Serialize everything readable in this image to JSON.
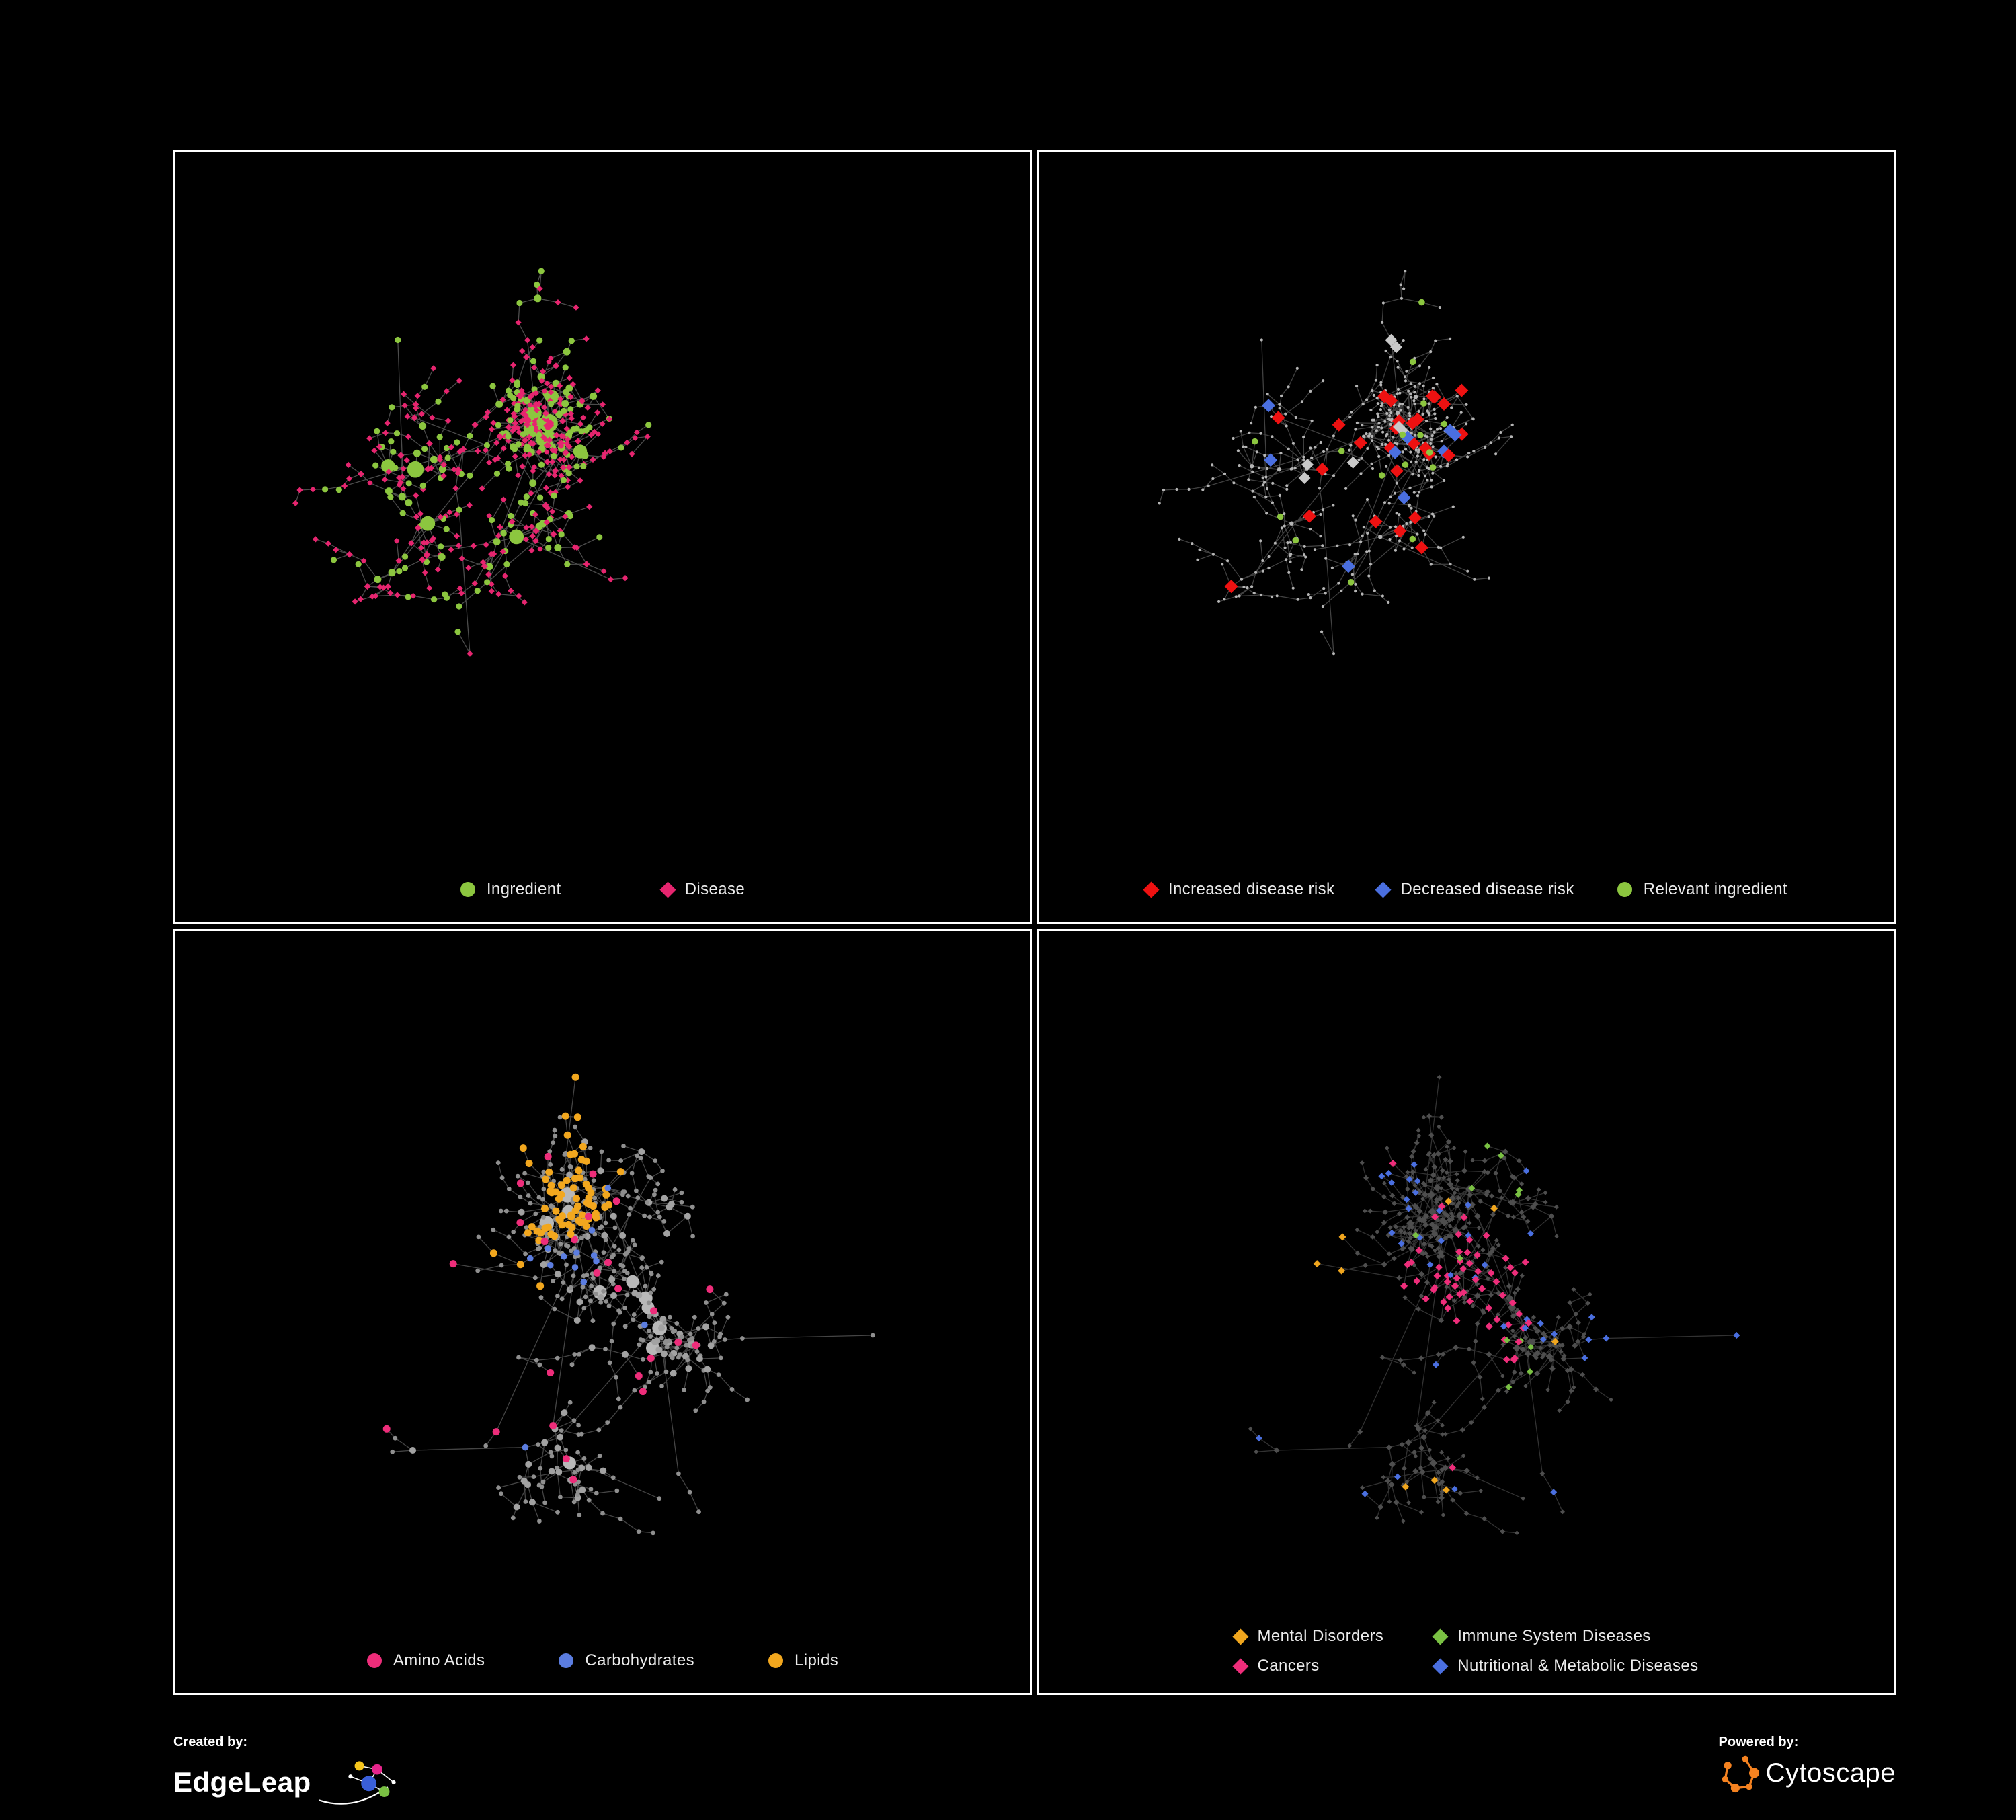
{
  "page": {
    "background": "#000000",
    "panel_border": "#ffffff",
    "text_color": "#e9e9e9"
  },
  "panels": [
    {
      "id": "ingredient-disease",
      "legend": [
        {
          "label": "Ingredient",
          "shape": "circle",
          "color": "#8cc63f"
        },
        {
          "label": "Disease",
          "shape": "diamond",
          "color": "#e6256f"
        }
      ],
      "network": {
        "seed": 11,
        "node_count": 520,
        "edge_color": "#8a8a8a",
        "edge_opacity": 0.55,
        "palette": {
          "ingredient": "#8cc63f",
          "disease": "#e6256f"
        }
      }
    },
    {
      "id": "disease-risk",
      "legend": [
        {
          "label": "Increased disease risk",
          "shape": "diamond",
          "color": "#ee1111"
        },
        {
          "label": "Decreased disease risk",
          "shape": "diamond",
          "color": "#4a6fe0"
        },
        {
          "label": "Relevant ingredient",
          "shape": "circle",
          "color": "#8cc63f"
        }
      ],
      "network": {
        "seed": 11,
        "node_count": 520,
        "edge_color": "#9a9a9a",
        "edge_opacity": 0.42,
        "palette": {
          "increased": "#ee1111",
          "decreased": "#4a6fe0",
          "ingredient": "#8cc63f",
          "neutral": "#c9c9c9",
          "base": "#b5b5b5"
        }
      }
    },
    {
      "id": "nutrient-classes",
      "legend": [
        {
          "label": "Amino Acids",
          "shape": "circle",
          "color": "#ee2d7a"
        },
        {
          "label": "Carbohydrates",
          "shape": "circle",
          "color": "#5b7de0"
        },
        {
          "label": "Lipids",
          "shape": "circle",
          "color": "#f2a71e"
        }
      ],
      "network": {
        "seed": 37,
        "node_count": 540,
        "edge_color": "#8a8a8a",
        "edge_opacity": 0.5,
        "palette": {
          "amino": "#ee2d7a",
          "carb": "#5b7de0",
          "lipid": "#f2a71e",
          "base": "#9a9a9a"
        }
      }
    },
    {
      "id": "disease-categories",
      "legend": [
        {
          "label": "Mental Disorders",
          "shape": "diamond",
          "color": "#f0a61e"
        },
        {
          "label": "Immune System Diseases",
          "shape": "diamond",
          "color": "#7ac143"
        },
        {
          "label": "Cancers",
          "shape": "diamond",
          "color": "#ee2d7a"
        },
        {
          "label": "Nutritional & Metabolic Diseases",
          "shape": "diamond",
          "color": "#4a6fe0"
        }
      ],
      "network": {
        "seed": 37,
        "node_count": 540,
        "edge_color": "#6f6f6f",
        "edge_opacity": 0.45,
        "palette": {
          "mental": "#f0a61e",
          "immune": "#7ac143",
          "cancers": "#ee2d7a",
          "metabolic": "#4a6fe0",
          "base": "#4e4e4e"
        }
      }
    }
  ],
  "footer": {
    "created_by_label": "Created by:",
    "created_by_name": "EdgeLeap",
    "powered_by_label": "Powered by:",
    "powered_by_name": "Cytoscape",
    "cytoscape_color": "#f58220"
  }
}
